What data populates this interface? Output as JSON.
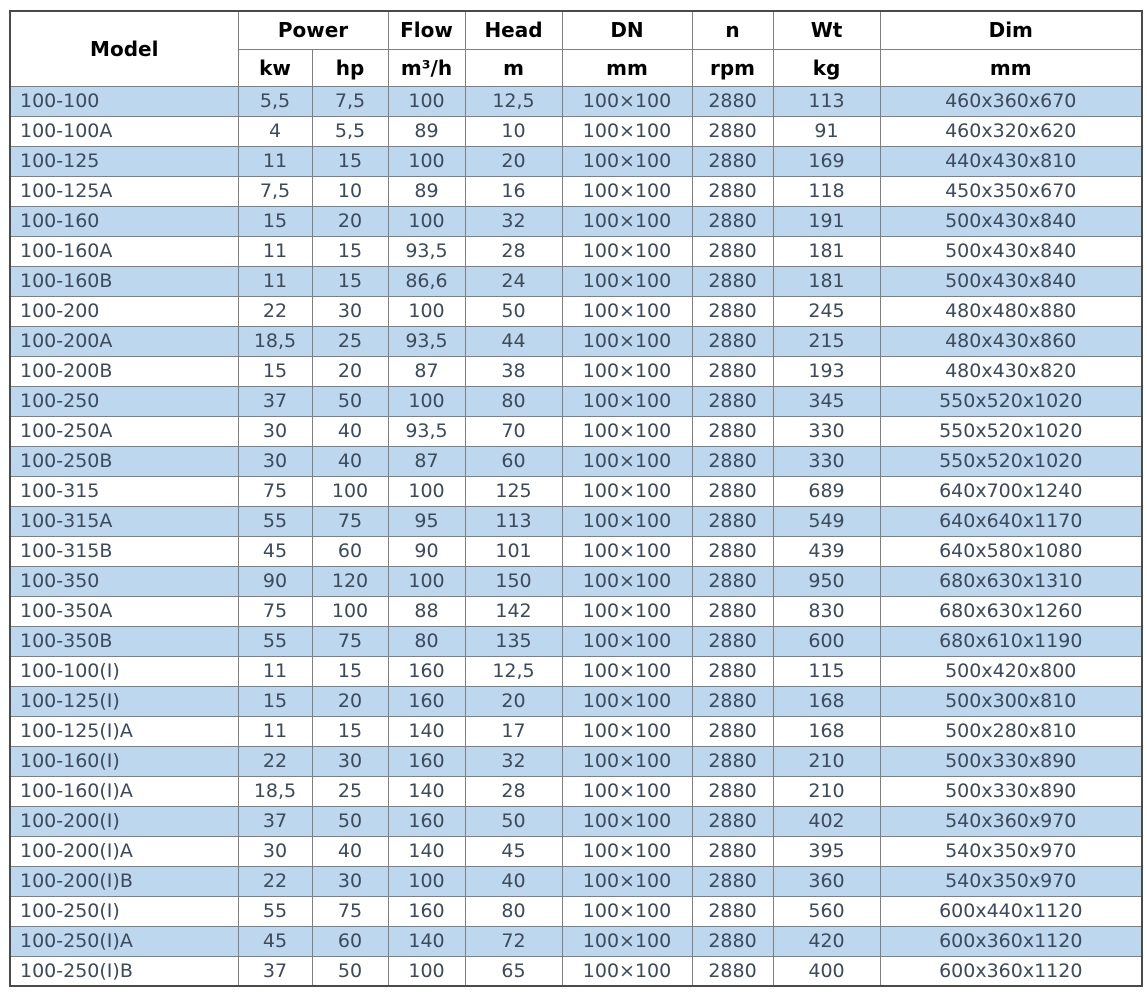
{
  "colors": {
    "stripe": "#bdd7ee",
    "row_white": "#ffffff",
    "border": "#7f7f7f",
    "outer_border": "#4a4a4a",
    "data_text": "#3c4a5a",
    "header_text": "#000000"
  },
  "table": {
    "header": {
      "model": "Model",
      "power": "Power",
      "kw": "kw",
      "hp": "hp",
      "flow": "Flow",
      "flow_unit": "m³/h",
      "head": "Head",
      "head_unit": "m",
      "dn": "DN",
      "dn_unit": "mm",
      "n": "n",
      "n_unit": "rpm",
      "wt": "Wt",
      "wt_unit": "kg",
      "dim": "Dim",
      "dim_unit": "mm"
    },
    "column_keys": [
      "model",
      "kw",
      "hp",
      "flow",
      "head",
      "dn",
      "rpm",
      "wt",
      "dim"
    ],
    "rows": [
      [
        "100-100",
        "5,5",
        "7,5",
        "100",
        "12,5",
        "100×100",
        "2880",
        "113",
        "460x360x670"
      ],
      [
        "100-100A",
        "4",
        "5,5",
        "89",
        "10",
        "100×100",
        "2880",
        "91",
        "460x320x620"
      ],
      [
        "100-125",
        "11",
        "15",
        "100",
        "20",
        "100×100",
        "2880",
        "169",
        "440x430x810"
      ],
      [
        "100-125A",
        "7,5",
        "10",
        "89",
        "16",
        "100×100",
        "2880",
        "118",
        "450x350x670"
      ],
      [
        "100-160",
        "15",
        "20",
        "100",
        "32",
        "100×100",
        "2880",
        "191",
        "500x430x840"
      ],
      [
        "100-160A",
        "11",
        "15",
        "93,5",
        "28",
        "100×100",
        "2880",
        "181",
        "500x430x840"
      ],
      [
        "100-160B",
        "11",
        "15",
        "86,6",
        "24",
        "100×100",
        "2880",
        "181",
        "500x430x840"
      ],
      [
        "100-200",
        "22",
        "30",
        "100",
        "50",
        "100×100",
        "2880",
        "245",
        "480x480x880"
      ],
      [
        "100-200A",
        "18,5",
        "25",
        "93,5",
        "44",
        "100×100",
        "2880",
        "215",
        "480x430x860"
      ],
      [
        "100-200B",
        "15",
        "20",
        "87",
        "38",
        "100×100",
        "2880",
        "193",
        "480x430x820"
      ],
      [
        "100-250",
        "37",
        "50",
        "100",
        "80",
        "100×100",
        "2880",
        "345",
        "550x520x1020"
      ],
      [
        "100-250A",
        "30",
        "40",
        "93,5",
        "70",
        "100×100",
        "2880",
        "330",
        "550x520x1020"
      ],
      [
        "100-250B",
        "30",
        "40",
        "87",
        "60",
        "100×100",
        "2880",
        "330",
        "550x520x1020"
      ],
      [
        "100-315",
        "75",
        "100",
        "100",
        "125",
        "100×100",
        "2880",
        "689",
        "640x700x1240"
      ],
      [
        "100-315A",
        "55",
        "75",
        "95",
        "113",
        "100×100",
        "2880",
        "549",
        "640x640x1170"
      ],
      [
        "100-315B",
        "45",
        "60",
        "90",
        "101",
        "100×100",
        "2880",
        "439",
        "640x580x1080"
      ],
      [
        "100-350",
        "90",
        "120",
        "100",
        "150",
        "100×100",
        "2880",
        "950",
        "680x630x1310"
      ],
      [
        "100-350A",
        "75",
        "100",
        "88",
        "142",
        "100×100",
        "2880",
        "830",
        "680x630x1260"
      ],
      [
        "100-350B",
        "55",
        "75",
        "80",
        "135",
        "100×100",
        "2880",
        "600",
        "680x610x1190"
      ],
      [
        "100-100(I)",
        "11",
        "15",
        "160",
        "12,5",
        "100×100",
        "2880",
        "115",
        "500x420x800"
      ],
      [
        "100-125(I)",
        "15",
        "20",
        "160",
        "20",
        "100×100",
        "2880",
        "168",
        "500x300x810"
      ],
      [
        "100-125(I)A",
        "11",
        "15",
        "140",
        "17",
        "100×100",
        "2880",
        "168",
        "500x280x810"
      ],
      [
        "100-160(I)",
        "22",
        "30",
        "160",
        "32",
        "100×100",
        "2880",
        "210",
        "500x330x890"
      ],
      [
        "100-160(I)A",
        "18,5",
        "25",
        "140",
        "28",
        "100×100",
        "2880",
        "210",
        "500x330x890"
      ],
      [
        "100-200(I)",
        "37",
        "50",
        "160",
        "50",
        "100×100",
        "2880",
        "402",
        "540x360x970"
      ],
      [
        "100-200(I)A",
        "30",
        "40",
        "140",
        "45",
        "100×100",
        "2880",
        "395",
        "540x350x970"
      ],
      [
        "100-200(I)B",
        "22",
        "30",
        "100",
        "40",
        "100×100",
        "2880",
        "360",
        "540x350x970"
      ],
      [
        "100-250(I)",
        "55",
        "75",
        "160",
        "80",
        "100×100",
        "2880",
        "560",
        "600x440x1120"
      ],
      [
        "100-250(I)A",
        "45",
        "60",
        "140",
        "72",
        "100×100",
        "2880",
        "420",
        "600x360x1120"
      ],
      [
        "100-250(I)B",
        "37",
        "50",
        "100",
        "65",
        "100×100",
        "2880",
        "400",
        "600x360x1120"
      ]
    ]
  }
}
